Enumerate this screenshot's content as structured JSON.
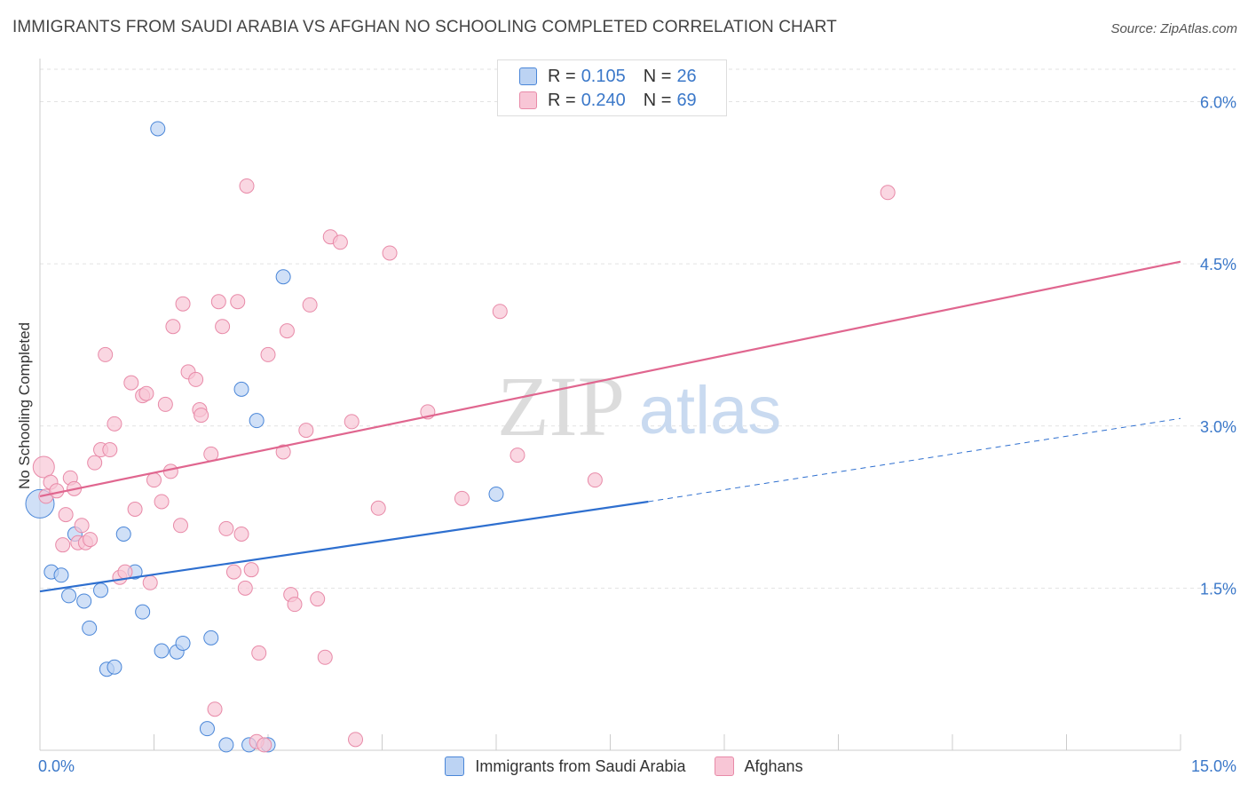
{
  "title": "IMMIGRANTS FROM SAUDI ARABIA VS AFGHAN NO SCHOOLING COMPLETED CORRELATION CHART",
  "source": "Source: ZipAtlas.com",
  "watermark": {
    "zip": "ZIP",
    "atlas": "atlas"
  },
  "legend": {
    "r_label": "R =",
    "n_label": "N =",
    "series": [
      {
        "r": "0.105",
        "n": "26"
      },
      {
        "r": "0.240",
        "n": "69"
      }
    ]
  },
  "chart_data": {
    "type": "scatter",
    "title": "IMMIGRANTS FROM SAUDI ARABIA VS AFGHAN NO SCHOOLING COMPLETED CORRELATION CHART",
    "xlabel": "",
    "ylabel": "No Schooling Completed",
    "xlim": [
      0,
      15
    ],
    "ylim": [
      0,
      6.3
    ],
    "x_tick_labels": [
      "0.0%",
      "15.0%"
    ],
    "y_ticks": [
      1.5,
      3.0,
      4.5,
      6.0
    ],
    "y_tick_labels": [
      "1.5%",
      "3.0%",
      "4.5%",
      "6.0%"
    ],
    "grid": true,
    "legend_position": "top-center",
    "series": [
      {
        "name": "Immigrants from Saudi Arabia",
        "color": "#4a86d8",
        "fill": "#bcd3f3",
        "trend": {
          "x0": 0,
          "y0": 1.47,
          "x1": 8.0,
          "y1": 2.3,
          "dash_to_x": 15.0,
          "dash_to_y": 3.07,
          "color": "#2e6fcf"
        },
        "points": [
          [
            0.0,
            2.28
          ],
          [
            0.15,
            1.65
          ],
          [
            0.28,
            1.62
          ],
          [
            0.38,
            1.43
          ],
          [
            0.46,
            2.0
          ],
          [
            0.58,
            1.38
          ],
          [
            0.65,
            1.13
          ],
          [
            0.8,
            1.48
          ],
          [
            0.88,
            0.75
          ],
          [
            0.98,
            0.77
          ],
          [
            1.1,
            2.0
          ],
          [
            1.25,
            1.65
          ],
          [
            1.35,
            1.28
          ],
          [
            1.55,
            5.75
          ],
          [
            1.6,
            0.92
          ],
          [
            1.8,
            0.91
          ],
          [
            1.88,
            0.99
          ],
          [
            2.2,
            0.2
          ],
          [
            2.25,
            1.04
          ],
          [
            2.45,
            0.05
          ],
          [
            2.65,
            3.34
          ],
          [
            2.75,
            0.05
          ],
          [
            2.85,
            3.05
          ],
          [
            3.0,
            0.05
          ],
          [
            3.2,
            4.38
          ],
          [
            6.0,
            2.37
          ]
        ]
      },
      {
        "name": "Afghans",
        "color": "#e88aa8",
        "fill": "#f8c6d6",
        "trend": {
          "x0": 0,
          "y0": 2.35,
          "x1": 15.0,
          "y1": 4.52,
          "color": "#e0668f"
        },
        "points": [
          [
            0.05,
            2.62
          ],
          [
            0.08,
            2.35
          ],
          [
            0.14,
            2.48
          ],
          [
            0.22,
            2.4
          ],
          [
            0.3,
            1.9
          ],
          [
            0.34,
            2.18
          ],
          [
            0.4,
            2.52
          ],
          [
            0.45,
            2.42
          ],
          [
            0.5,
            1.92
          ],
          [
            0.55,
            2.08
          ],
          [
            0.6,
            1.92
          ],
          [
            0.66,
            1.95
          ],
          [
            0.72,
            2.66
          ],
          [
            0.8,
            2.78
          ],
          [
            0.86,
            3.66
          ],
          [
            0.92,
            2.78
          ],
          [
            0.98,
            3.02
          ],
          [
            1.05,
            1.6
          ],
          [
            1.12,
            1.65
          ],
          [
            1.2,
            3.4
          ],
          [
            1.25,
            2.23
          ],
          [
            1.35,
            3.28
          ],
          [
            1.4,
            3.3
          ],
          [
            1.45,
            1.55
          ],
          [
            1.5,
            2.5
          ],
          [
            1.6,
            2.3
          ],
          [
            1.65,
            3.2
          ],
          [
            1.72,
            2.58
          ],
          [
            1.75,
            3.92
          ],
          [
            1.85,
            2.08
          ],
          [
            1.88,
            4.13
          ],
          [
            1.95,
            3.5
          ],
          [
            2.05,
            3.43
          ],
          [
            2.1,
            3.15
          ],
          [
            2.12,
            3.1
          ],
          [
            2.25,
            2.74
          ],
          [
            2.3,
            0.38
          ],
          [
            2.35,
            4.15
          ],
          [
            2.4,
            3.92
          ],
          [
            2.45,
            2.05
          ],
          [
            2.55,
            1.65
          ],
          [
            2.6,
            4.15
          ],
          [
            2.65,
            2.0
          ],
          [
            2.7,
            1.5
          ],
          [
            2.72,
            5.22
          ],
          [
            2.78,
            1.67
          ],
          [
            2.85,
            0.08
          ],
          [
            2.88,
            0.9
          ],
          [
            2.95,
            0.05
          ],
          [
            3.0,
            3.66
          ],
          [
            3.2,
            2.76
          ],
          [
            3.25,
            3.88
          ],
          [
            3.3,
            1.44
          ],
          [
            3.35,
            1.35
          ],
          [
            3.5,
            2.96
          ],
          [
            3.55,
            4.12
          ],
          [
            3.65,
            1.4
          ],
          [
            3.75,
            0.86
          ],
          [
            3.82,
            4.75
          ],
          [
            3.95,
            4.7
          ],
          [
            4.1,
            3.04
          ],
          [
            4.15,
            0.1
          ],
          [
            4.45,
            2.24
          ],
          [
            4.6,
            4.6
          ],
          [
            5.1,
            3.13
          ],
          [
            5.55,
            2.33
          ],
          [
            6.05,
            4.06
          ],
          [
            6.28,
            2.73
          ],
          [
            7.3,
            2.5
          ],
          [
            11.15,
            5.16
          ]
        ]
      }
    ]
  }
}
